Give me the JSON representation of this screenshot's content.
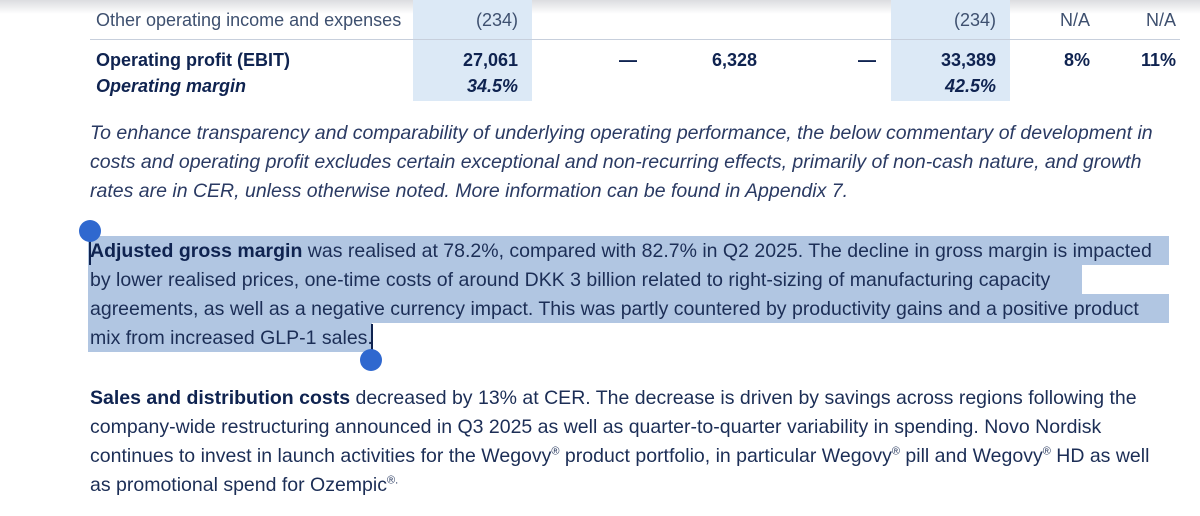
{
  "table": {
    "rows": [
      {
        "label": "Other operating income and expenses",
        "c1": "(234)",
        "c2": "",
        "c3": "",
        "c4": "",
        "c5": "(234)",
        "c6": "N/A",
        "c7": "N/A"
      },
      {
        "label": "Operating profit (EBIT)",
        "c1": "27,061",
        "c2": "—",
        "c3": "6,328",
        "c4": "—",
        "c5": "33,389",
        "c6": "8%",
        "c7": "11%"
      },
      {
        "label": "Operating margin",
        "c1": "34.5%",
        "c2": "",
        "c3": "",
        "c4": "",
        "c5": "42.5%",
        "c6": "",
        "c7": ""
      }
    ]
  },
  "note": {
    "lines": [
      "To enhance transparency and comparability of underlying operating performance, the below commentary of development in",
      "costs and operating profit excludes certain exceptional and non-recurring effects, primarily of non-cash nature, and growth",
      "rates are in CER, unless otherwise noted. More information can be found in Appendix 7."
    ]
  },
  "gross_margin": {
    "lead": "Adjusted gross margin",
    "line1_rest": " was realised at 78.2%, compared with 82.7% in Q2 2025. The decline in gross margin is impacted",
    "line2": "by lower realised prices, one-time costs of around DKK 3 billion related to right-sizing of manufacturing capacity",
    "line3": "agreements, as well as a negative currency impact. This was partly countered by productivity gains and a positive product",
    "line4": "mix from increased GLP-1 sales."
  },
  "sales_dist": {
    "lead": "Sales and distribution costs",
    "line1_rest": " decreased by 13% at CER. The decrease is driven by savings across regions following the",
    "line2": "company-wide restructuring announced in Q3 2025 as well as quarter-to-quarter variability in spending. Novo Nordisk",
    "line3_a": "continues to invest in launch activities for the Wegovy",
    "line3_b": " product portfolio, in particular Wegovy",
    "line3_c": " pill and Wegovy",
    "line3_d": " HD as well",
    "line4_a": "as promotional spend for Ozempic",
    "line4_b": ".",
    "reg": "®"
  },
  "colors": {
    "navy": "#0f2350",
    "column_shade": "#dce9f6",
    "selection": "#b1c6e2",
    "handle": "#2f68cf"
  }
}
